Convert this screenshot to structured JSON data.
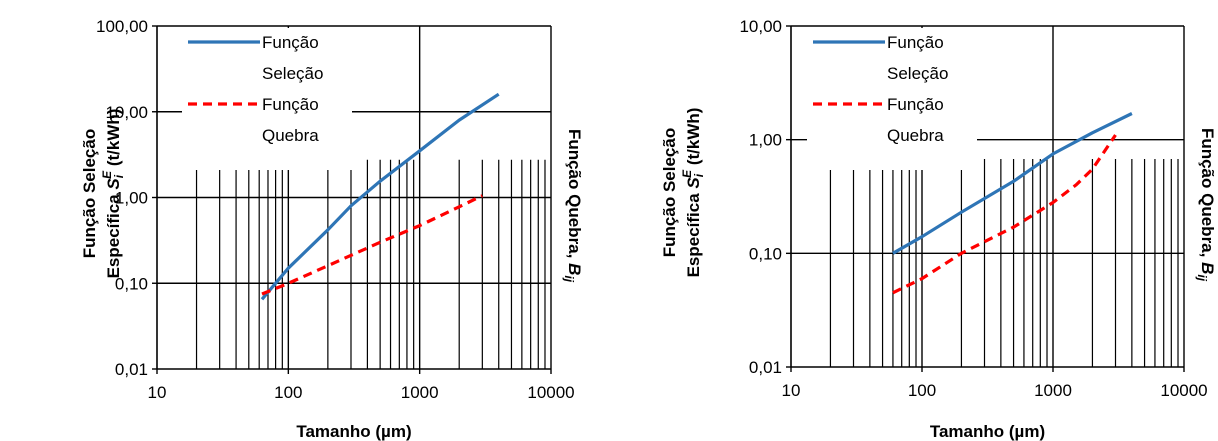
{
  "chart_data": [
    {
      "type": "line",
      "xscale": "log",
      "yscale": "log",
      "xlim": [
        10,
        10000
      ],
      "ylim": [
        0.01,
        100
      ],
      "x_ticks": [
        "10",
        "100",
        "1000",
        "10000"
      ],
      "y_ticks": [
        "0,01",
        "0,10",
        "1,00",
        "10,00",
        "100,00"
      ],
      "xlabel": "Tamanho (µm)",
      "ylabel_line1": "Função Seleção",
      "ylabel_line2_prefix": "Específica ",
      "ylabel_symbol": "S",
      "ylabel_sub": "i",
      "ylabel_sup": "E",
      "ylabel_unit": " (t/kWh)",
      "y2label_prefix": "Função Quebra, ",
      "y2label_symbol": "B",
      "y2label_sub": "ij",
      "grid": true,
      "legend_position": "top-left",
      "series": [
        {
          "name_lines": [
            "Função",
            "Seleção"
          ],
          "color": "#2e75b6",
          "dash": "solid",
          "points": [
            [
              63,
              0.065
            ],
            [
              100,
              0.15
            ],
            [
              200,
              0.42
            ],
            [
              300,
              0.8
            ],
            [
              500,
              1.55
            ],
            [
              1000,
              3.5
            ],
            [
              2000,
              8.0
            ],
            [
              4000,
              16.0
            ]
          ]
        },
        {
          "name_lines": [
            "Função",
            "Quebra"
          ],
          "color": "#ff0000",
          "dash": "dashed",
          "points": [
            [
              63,
              0.075
            ],
            [
              100,
              0.1
            ],
            [
              200,
              0.16
            ],
            [
              500,
              0.3
            ],
            [
              1000,
              0.47
            ],
            [
              2000,
              0.78
            ],
            [
              3000,
              1.05
            ]
          ]
        }
      ]
    },
    {
      "type": "line",
      "xscale": "log",
      "yscale": "log",
      "xlim": [
        10,
        10000
      ],
      "ylim": [
        0.01,
        10
      ],
      "x_ticks": [
        "10",
        "100",
        "1000",
        "10000"
      ],
      "y_ticks": [
        "0,01",
        "0,10",
        "1,00",
        "10,00"
      ],
      "xlabel": "Tamanho (µm)",
      "ylabel_line1": "Função Seleção",
      "ylabel_line2_prefix": "Específica ",
      "ylabel_symbol": "S",
      "ylabel_sub": "i",
      "ylabel_sup": "E",
      "ylabel_unit": " (t/kWh)",
      "y2label_prefix": "Função Quebra, ",
      "y2label_symbol": "B",
      "y2label_sub": "ij",
      "grid": true,
      "legend_position": "top-left",
      "series": [
        {
          "name_lines": [
            "Função",
            "Seleção"
          ],
          "color": "#2e75b6",
          "dash": "solid",
          "points": [
            [
              60,
              0.1
            ],
            [
              100,
              0.14
            ],
            [
              200,
              0.23
            ],
            [
              500,
              0.43
            ],
            [
              1000,
              0.75
            ],
            [
              2000,
              1.15
            ],
            [
              4000,
              1.7
            ]
          ]
        },
        {
          "name_lines": [
            "Função",
            "Quebra"
          ],
          "color": "#ff0000",
          "dash": "dashed",
          "points": [
            [
              60,
              0.045
            ],
            [
              100,
              0.06
            ],
            [
              200,
              0.1
            ],
            [
              500,
              0.17
            ],
            [
              1000,
              0.28
            ],
            [
              1500,
              0.4
            ],
            [
              2000,
              0.55
            ],
            [
              3000,
              1.1
            ]
          ]
        }
      ]
    }
  ]
}
